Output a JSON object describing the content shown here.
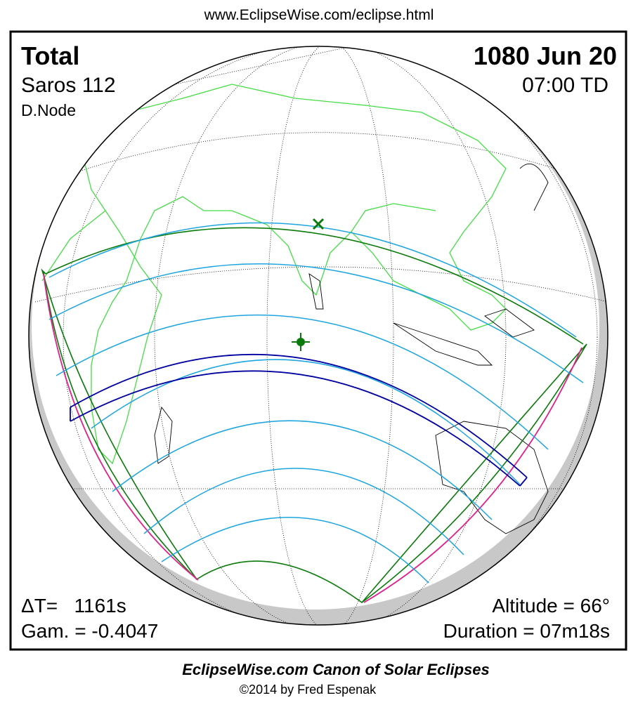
{
  "url": "www.EclipseWise.com/eclipse.html",
  "header": {
    "type": "Total",
    "date": "1080 Jun 20",
    "saros": "Saros 112",
    "time": "07:00 TD",
    "node": "D.Node"
  },
  "stats": {
    "delta_t": "ΔT=   1161s",
    "gamma": "Gam. = -0.4047",
    "altitude": "Altitude = 66°",
    "duration": "Duration = 07m18s"
  },
  "footer": {
    "title": "EclipseWise.com Canon of Solar Eclipses",
    "credit": "©2014 by Fred Espenak"
  }
}
